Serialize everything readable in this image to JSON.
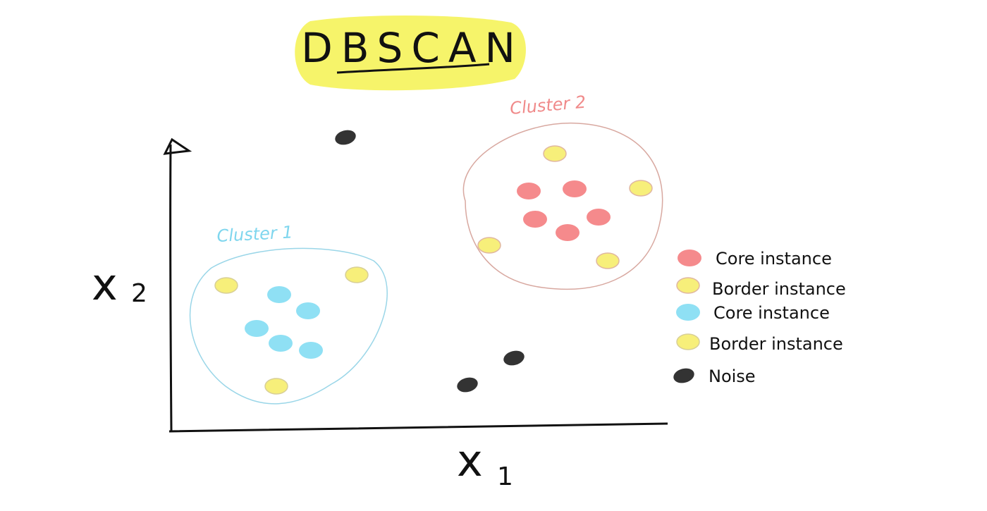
{
  "title": "DBSCAN",
  "axes": {
    "x_label": "x",
    "x_sub": "1",
    "y_label": "x",
    "y_sub": "2"
  },
  "clusters": [
    {
      "label": "Cluster 1",
      "color": "#7fd6ee"
    },
    {
      "label": "Cluster 2",
      "color": "#f08a8a"
    }
  ],
  "legend": [
    {
      "label": "Core instance",
      "color": "#f58a8c"
    },
    {
      "label": "Border instance",
      "color": "#f7ef7a"
    },
    {
      "label": "Core instance",
      "color": "#8fe0f4"
    },
    {
      "label": "Border instance",
      "color": "#f7ef7a"
    },
    {
      "label": "Noise",
      "color": "#333333"
    }
  ],
  "colors": {
    "highlight": "#f6f46a",
    "core_red": "#f58a8c",
    "core_blue": "#8fe0f4",
    "border": "#f7ef7a",
    "noise": "#333333",
    "ink": "#111111"
  }
}
